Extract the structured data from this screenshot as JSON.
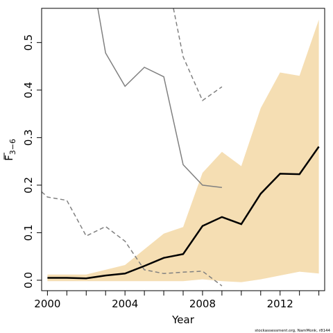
{
  "chart_data": {
    "type": "line",
    "title": "",
    "xlabel": "Year",
    "ylabel_main": "F",
    "ylabel_sub": "3−6",
    "xlim": [
      1999.7,
      2014.3
    ],
    "ylim": [
      -0.022,
      0.572
    ],
    "x_ticks": [
      2000,
      2004,
      2008,
      2012
    ],
    "x_tick_labels": [
      "2000",
      "2004",
      "2008",
      "2012"
    ],
    "y_ticks": [
      0.0,
      0.1,
      0.2,
      0.3,
      0.4,
      0.5
    ],
    "y_tick_labels": [
      "0.0",
      "0.1",
      "0.2",
      "0.3",
      "0.4",
      "0.5"
    ],
    "grid": false,
    "legend": "none",
    "colors": {
      "band": "#f5deb3",
      "estimate": "#000000",
      "previous": "#808080"
    },
    "series": [
      {
        "role": "confidence-band",
        "x": [
          2000,
          2001,
          2002,
          2003,
          2004,
          2005,
          2006,
          2007,
          2008,
          2009,
          2010,
          2011,
          2012,
          2013,
          2014
        ],
        "upper": [
          0.012,
          0.012,
          0.012,
          0.022,
          0.032,
          0.065,
          0.098,
          0.112,
          0.226,
          0.27,
          0.24,
          0.362,
          0.437,
          0.43,
          0.548
        ],
        "lower": [
          -0.002,
          -0.002,
          -0.002,
          -0.002,
          -0.002,
          -0.002,
          -0.002,
          -0.002,
          0.002,
          -0.002,
          -0.004,
          0.002,
          0.01,
          0.018,
          0.014
        ]
      },
      {
        "role": "estimate",
        "x": [
          2000,
          2001,
          2002,
          2003,
          2004,
          2005,
          2006,
          2007,
          2008,
          2009,
          2010,
          2011,
          2012,
          2013,
          2014
        ],
        "y": [
          0.005,
          0.005,
          0.004,
          0.01,
          0.014,
          0.03,
          0.047,
          0.055,
          0.114,
          0.133,
          0.118,
          0.182,
          0.224,
          0.223,
          0.281
        ]
      },
      {
        "role": "previous-estimate",
        "x": [
          2002.6,
          2003,
          2004,
          2005,
          2006,
          2007,
          2008,
          2009
        ],
        "y": [
          0.572,
          0.478,
          0.408,
          0.448,
          0.428,
          0.243,
          0.2,
          0.195
        ]
      },
      {
        "role": "previous-upper",
        "x": [
          2006.5,
          2007,
          2008,
          2009
        ],
        "y": [
          0.572,
          0.47,
          0.378,
          0.407
        ]
      },
      {
        "role": "previous-lower",
        "x": [
          1999.7,
          2000,
          2001,
          2002,
          2003,
          2004,
          2005,
          2006,
          2007,
          2008,
          2009
        ],
        "y": [
          0.186,
          0.175,
          0.168,
          0.093,
          0.113,
          0.082,
          0.022,
          0.014,
          0.017,
          0.019,
          -0.012
        ]
      }
    ]
  },
  "footer": {
    "credit": "stockassessment.org, NamMonk, r8144"
  }
}
